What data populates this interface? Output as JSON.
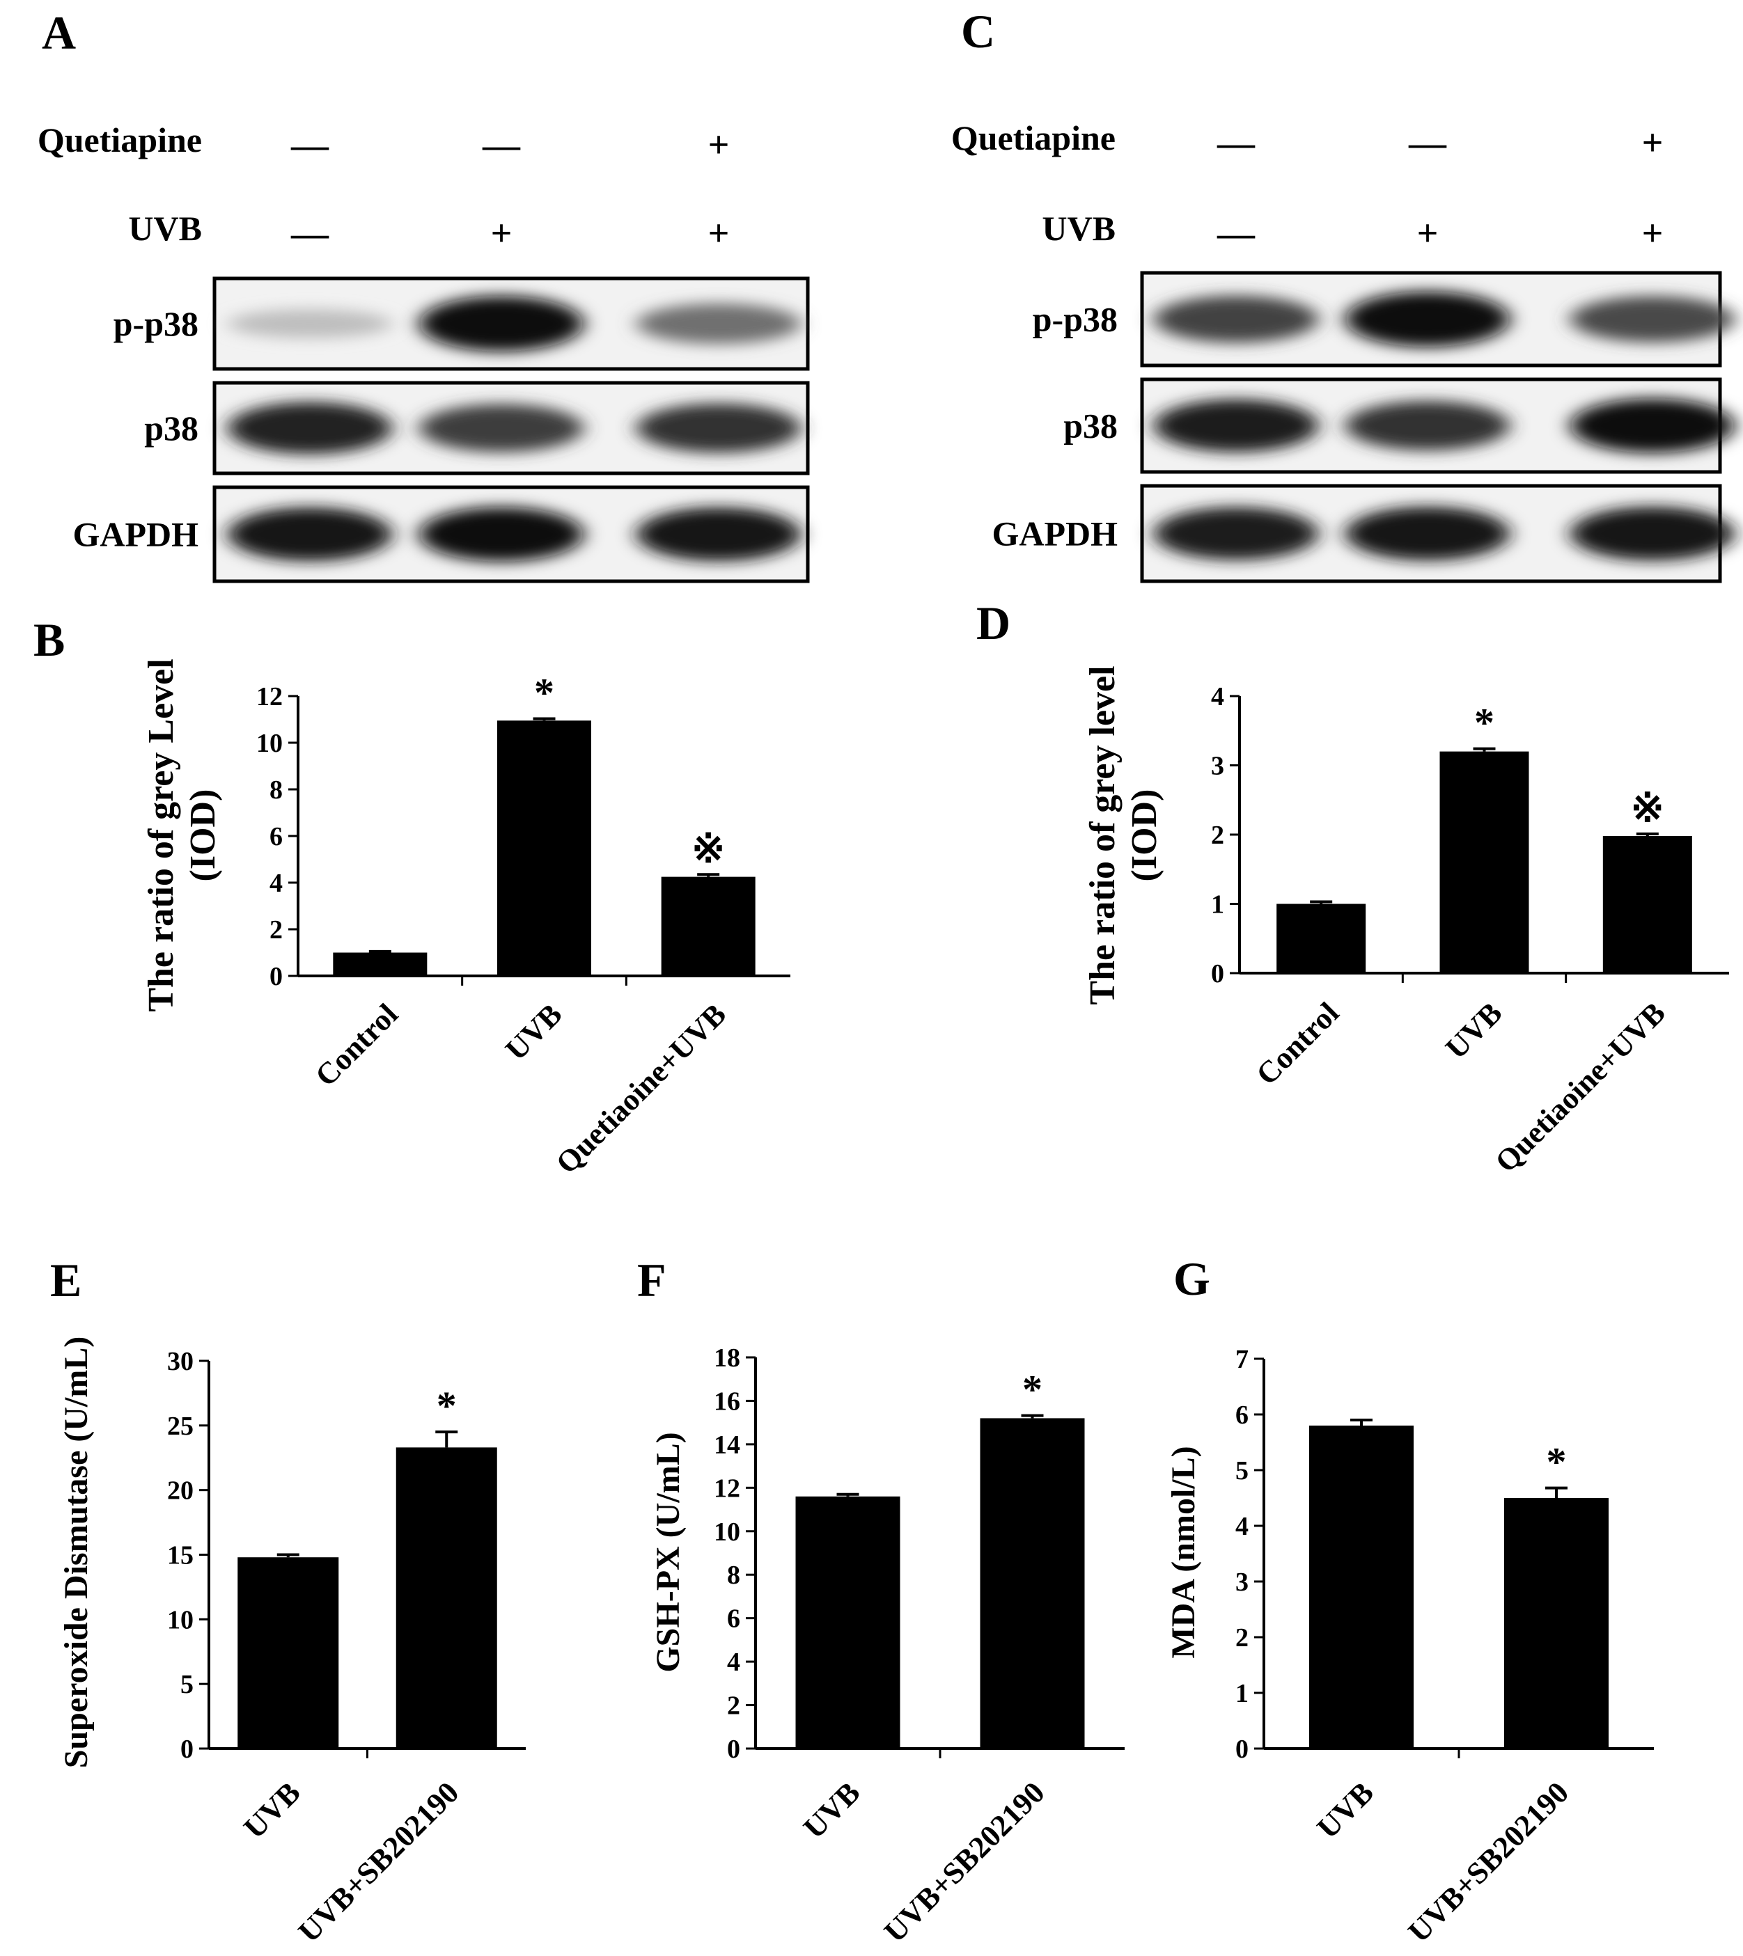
{
  "blots": [
    {
      "panel": "A",
      "treatments": [
        {
          "name": "Quetiapine",
          "marks": [
            "—",
            "—",
            "+"
          ]
        },
        {
          "name": "UVB",
          "marks": [
            "—",
            "+",
            "+"
          ]
        }
      ],
      "rows": [
        {
          "name": "p-p38",
          "intensity": [
            0.2,
            1.0,
            0.55
          ]
        },
        {
          "name": "p38",
          "intensity": [
            0.9,
            0.78,
            0.82
          ]
        },
        {
          "name": "GAPDH",
          "intensity": [
            0.95,
            0.97,
            0.95
          ]
        }
      ]
    },
    {
      "panel": "C",
      "treatments": [
        {
          "name": "Quetiapine",
          "marks": [
            "—",
            "—",
            "+"
          ]
        },
        {
          "name": "UVB",
          "marks": [
            "—",
            "+",
            "+"
          ]
        }
      ],
      "rows": [
        {
          "name": "p-p38",
          "intensity": [
            0.75,
            1.0,
            0.72
          ]
        },
        {
          "name": "p38",
          "intensity": [
            0.92,
            0.82,
            0.97
          ]
        },
        {
          "name": "GAPDH",
          "intensity": [
            0.92,
            0.95,
            0.95
          ]
        }
      ]
    }
  ],
  "chart_data": [
    {
      "panel": "B",
      "type": "bar",
      "categories": [
        "Control",
        "UVB",
        "Quetiaoine+UVB"
      ],
      "values": [
        1.0,
        10.95,
        4.25
      ],
      "errors": [
        0.05,
        0.08,
        0.1
      ],
      "significance": [
        "",
        "*",
        "※"
      ],
      "ylabel": [
        "The ratio of grey Level",
        "(IOD)"
      ],
      "ylim": [
        0,
        12
      ],
      "yticks": [
        0,
        2,
        4,
        6,
        8,
        10,
        12
      ]
    },
    {
      "panel": "D",
      "type": "bar",
      "categories": [
        "Control",
        "UVB",
        "Quetiaoine+UVB"
      ],
      "values": [
        1.0,
        3.2,
        1.98
      ],
      "errors": [
        0.03,
        0.04,
        0.03
      ],
      "significance": [
        "",
        "*",
        "※"
      ],
      "ylabel": [
        "The ratio of grey level",
        "(IOD)"
      ],
      "ylim": [
        0,
        4
      ],
      "yticks": [
        0,
        1,
        2,
        3,
        4
      ]
    },
    {
      "panel": "E",
      "type": "bar",
      "categories": [
        "UVB",
        "UVB+SB202190"
      ],
      "values": [
        14.8,
        23.3
      ],
      "errors": [
        0.2,
        1.2
      ],
      "significance": [
        "",
        "*"
      ],
      "ylabel": [
        "Superoxide Dismutase (U/mL)"
      ],
      "ylim": [
        0,
        30
      ],
      "yticks": [
        0,
        5,
        10,
        15,
        20,
        25,
        30
      ]
    },
    {
      "panel": "F",
      "type": "bar",
      "categories": [
        "UVB",
        "UVB+SB202190"
      ],
      "values": [
        11.6,
        15.2
      ],
      "errors": [
        0.1,
        0.12
      ],
      "significance": [
        "",
        "*"
      ],
      "ylabel": [
        "GSH-PX (U/mL)"
      ],
      "ylim": [
        0,
        18
      ],
      "yticks": [
        0,
        2,
        4,
        6,
        8,
        10,
        12,
        14,
        16,
        18
      ]
    },
    {
      "panel": "G",
      "type": "bar",
      "categories": [
        "UVB",
        "UVB+SB202190"
      ],
      "values": [
        5.8,
        4.5
      ],
      "errors": [
        0.1,
        0.18
      ],
      "significance": [
        "",
        "*"
      ],
      "ylabel": [
        "MDA (nmol/L)"
      ],
      "ylim": [
        0,
        7
      ],
      "yticks": [
        0,
        1,
        2,
        3,
        4,
        5,
        6,
        7
      ]
    }
  ]
}
